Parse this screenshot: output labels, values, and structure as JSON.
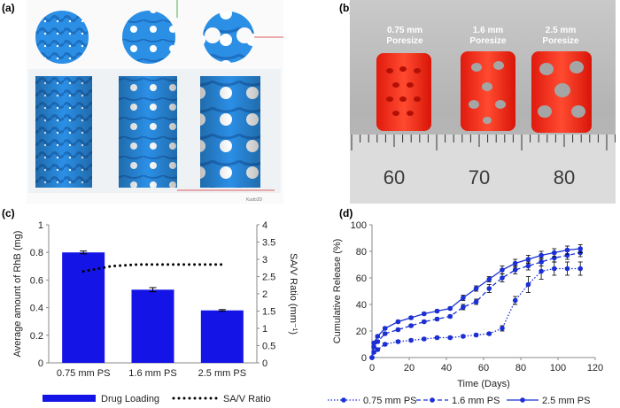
{
  "panels": {
    "a": {
      "label": "(a)",
      "watermark": "Kudo3D"
    },
    "b": {
      "label": "(b)",
      "pore_labels": [
        {
          "size": "0.75 mm",
          "word": "Poresize"
        },
        {
          "size": "1.6 mm",
          "word": "Poresize"
        },
        {
          "size": "2.5 mm",
          "word": "Poresize"
        }
      ],
      "ruler_numbers": [
        "60",
        "70",
        "80"
      ]
    },
    "c": {
      "label": "(c)"
    },
    "d": {
      "label": "(d)"
    }
  },
  "colors": {
    "bar": "#1414e6",
    "scaffold_blue": "#1e8fe0",
    "print_red": "#ff2a1a"
  },
  "chart_data": [
    {
      "id": "c",
      "type": "bar",
      "categories": [
        "0.75 mm PS",
        "1.6 mm PS",
        "2.5 mm PS"
      ],
      "series": [
        {
          "name": "Drug Loading",
          "axis": "left",
          "values": [
            0.8,
            0.53,
            0.38
          ],
          "errors": [
            0.01,
            0.015,
            0.006
          ]
        },
        {
          "name": "SA/V Ratio",
          "axis": "right",
          "type": "line",
          "style": "dotted",
          "x": [
            0,
            0.4,
            0.8,
            1.2,
            1.6,
            2.0
          ],
          "values": [
            2.65,
            2.8,
            2.85,
            2.85,
            2.85,
            2.85
          ]
        }
      ],
      "ylabel": "Average amount of RhB (mg)",
      "y2label": "SA/V Ratio (mm⁻¹)",
      "ylim": [
        0,
        1
      ],
      "yticks": [
        "0",
        "0.2",
        "0.4",
        "0.6",
        "0.8",
        "1"
      ],
      "y2lim": [
        0,
        4
      ],
      "y2ticks": [
        "0",
        "0.5",
        "1",
        "1.5",
        "2",
        "2.5",
        "3",
        "3.5",
        "4"
      ],
      "legend": [
        "Drug Loading",
        "SA/V Ratio"
      ]
    },
    {
      "id": "d",
      "type": "line",
      "xlabel": "Time (Days)",
      "ylabel": "Cumulative Release (%)",
      "xlim": [
        0,
        120
      ],
      "xticks": [
        "0",
        "20",
        "40",
        "60",
        "80",
        "100",
        "120"
      ],
      "ylim": [
        0,
        100
      ],
      "yticks": [
        "0",
        "20",
        "40",
        "60",
        "80",
        "100"
      ],
      "series": [
        {
          "name": "0.75 mm PS",
          "style": "dotted",
          "x": [
            0,
            1,
            3,
            7,
            14,
            21,
            28,
            35,
            42,
            49,
            56,
            63,
            70,
            77,
            84,
            91,
            98,
            105,
            112
          ],
          "values": [
            0,
            4,
            6,
            10,
            12,
            13,
            14,
            15,
            15,
            16,
            17,
            18,
            22,
            43,
            55,
            65,
            67,
            67,
            67
          ],
          "errors": [
            0,
            1,
            1,
            1,
            1,
            1,
            1,
            1,
            1,
            1,
            1,
            1,
            2,
            3,
            6,
            6,
            5,
            5,
            5
          ]
        },
        {
          "name": "1.6 mm PS",
          "style": "dashed",
          "x": [
            0,
            1,
            3,
            7,
            14,
            21,
            28,
            35,
            42,
            49,
            56,
            63,
            70,
            77,
            84,
            91,
            98,
            105,
            112
          ],
          "values": [
            0,
            8,
            12,
            18,
            21,
            24,
            27,
            29,
            31,
            38,
            42,
            52,
            60,
            66,
            69,
            72,
            75,
            77,
            79
          ],
          "errors": [
            0,
            1,
            1,
            1,
            1,
            1,
            1,
            1,
            1,
            2,
            2,
            3,
            3,
            3,
            3,
            3,
            3,
            3,
            3
          ]
        },
        {
          "name": "2.5 mm PS",
          "style": "solid",
          "x": [
            0,
            1,
            3,
            7,
            14,
            21,
            28,
            35,
            42,
            49,
            56,
            63,
            70,
            77,
            84,
            91,
            98,
            105,
            112
          ],
          "values": [
            0,
            11,
            16,
            22,
            27,
            30,
            33,
            35,
            37,
            45,
            52,
            59,
            66,
            71,
            74,
            77,
            79,
            81,
            82
          ],
          "errors": [
            0,
            1,
            1,
            1,
            1,
            1,
            1,
            1,
            1,
            2,
            2,
            2,
            3,
            3,
            3,
            3,
            3,
            3,
            3
          ]
        }
      ],
      "legend": [
        "0.75 mm PS",
        "1.6 mm PS",
        "2.5 mm PS"
      ]
    }
  ]
}
